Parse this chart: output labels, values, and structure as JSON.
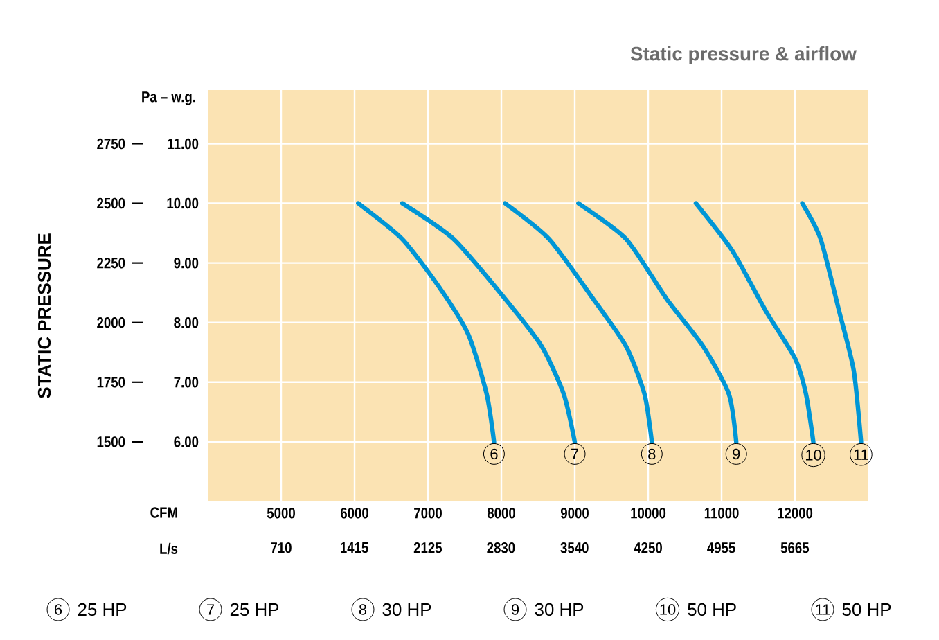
{
  "chart_data": {
    "type": "line",
    "title": "Static pressure & airflow",
    "xlabel": "CFM",
    "x2label": "L/s",
    "ylabel": "STATIC PRESSURE",
    "xlim": [
      4000,
      13000
    ],
    "xticks": [
      5000,
      6000,
      7000,
      8000,
      9000,
      10000,
      11000,
      12000
    ],
    "x2lim": [
      2,
      6374
    ],
    "x2ticks": [
      710,
      1415,
      2125,
      2830,
      3540,
      4250,
      4955,
      5665
    ],
    "ylim": [
      1250,
      2975
    ],
    "yticks": [
      1500,
      1750,
      2000,
      2250,
      2500,
      2750
    ],
    "y2lim": [
      5,
      11.9
    ],
    "y2ticks": [
      {
        "value": 6,
        "label": "6.00"
      },
      {
        "value": 7,
        "label": "7.00"
      },
      {
        "value": 8,
        "label": "8.00"
      },
      {
        "value": 9,
        "label": "9.00"
      },
      {
        "value": 10,
        "label": "10.00"
      },
      {
        "value": 11,
        "label": "11.00"
      }
    ],
    "grid": true,
    "marker": "none",
    "line_style": "solid",
    "series": [
      {
        "name": "6",
        "color": "#0096d6",
        "x": [
          6050,
          6650,
          7150,
          7550,
          7800,
          7900
        ],
        "values": [
          2500,
          2350,
          2150,
          1950,
          1700,
          1500
        ]
      },
      {
        "name": "7",
        "color": "#0096d6",
        "x": [
          6650,
          7350,
          8050,
          8550,
          8850,
          9000
        ],
        "values": [
          2500,
          2350,
          2100,
          1900,
          1700,
          1500
        ]
      },
      {
        "name": "8",
        "color": "#0096d6",
        "x": [
          8050,
          8650,
          9250,
          9700,
          9950,
          10050
        ],
        "values": [
          2500,
          2350,
          2100,
          1900,
          1700,
          1500
        ]
      },
      {
        "name": "9",
        "color": "#0096d6",
        "x": [
          9050,
          9700,
          10250,
          10750,
          11100,
          11200
        ],
        "values": [
          2500,
          2350,
          2100,
          1900,
          1700,
          1500
        ]
      },
      {
        "name": "10",
        "color": "#0096d6",
        "x": [
          10650,
          11150,
          11600,
          12000,
          12150,
          12250
        ],
        "values": [
          2500,
          2300,
          2050,
          1850,
          1700,
          1500
        ]
      },
      {
        "name": "11",
        "color": "#0096d6",
        "x": [
          12100,
          12350,
          12600,
          12800,
          12900
        ],
        "values": [
          2500,
          2350,
          2050,
          1800,
          1500
        ]
      }
    ],
    "annotations": [
      "Pa – w.g.",
      "25 HP",
      "25 HP",
      "30 HP",
      "30 HP",
      "50 HP",
      "50 HP"
    ]
  }
}
